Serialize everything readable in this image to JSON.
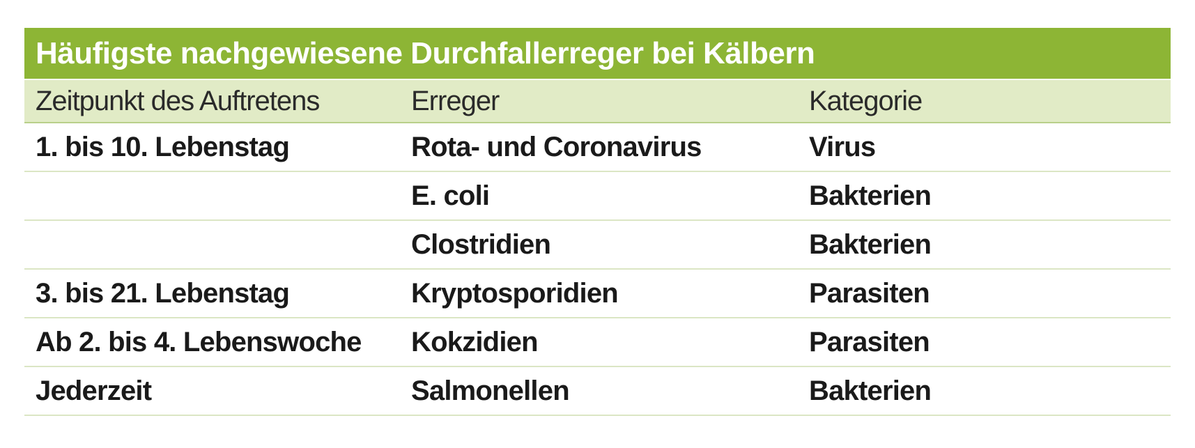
{
  "table": {
    "title": "Häufigste nachgewiesene Durchfallerreger bei Kälbern",
    "headers": [
      "Zeitpunkt des Auftretens",
      "Erreger",
      "Kategorie"
    ],
    "rows": [
      [
        "1. bis 10. Lebenstag",
        "Rota- und Coronavirus",
        "Virus"
      ],
      [
        "",
        "E. coli",
        "Bakterien"
      ],
      [
        "",
        "Clostridien",
        "Bakterien"
      ],
      [
        "3. bis 21. Lebenstag",
        "Kryptosporidien",
        "Parasiten"
      ],
      [
        "Ab 2. bis 4. Lebenswoche",
        "Kokzidien",
        "Parasiten"
      ],
      [
        "Jederzeit",
        "Salmonellen",
        "Bakterien"
      ]
    ]
  },
  "colors": {
    "title_bg": "#8db535",
    "header_bg": "#e1ebc6",
    "divider": "#dbe6c4"
  }
}
